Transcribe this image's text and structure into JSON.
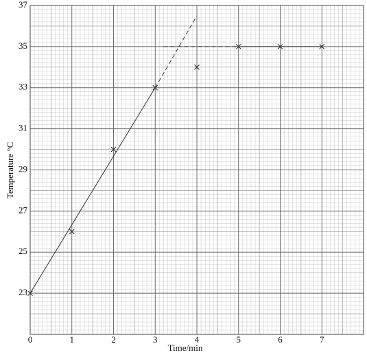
{
  "chart_data": {
    "type": "scatter",
    "x_label": "Time/min",
    "y_label": "Temperature °C",
    "x": [
      0,
      1,
      2,
      3,
      4,
      5,
      6,
      7
    ],
    "values": [
      23,
      26,
      30,
      33,
      34,
      35,
      35,
      35
    ],
    "color": "#333333",
    "xlim": [
      0,
      8
    ],
    "ylim": [
      21,
      37
    ],
    "xticks": [
      0,
      1,
      2,
      3,
      4,
      5,
      6,
      7
    ],
    "yticks": [
      23,
      25,
      27,
      29,
      31,
      33,
      35,
      37
    ],
    "grid": true,
    "lines": [
      {
        "x": [
          0,
          3
        ],
        "values": [
          23,
          33
        ],
        "dashed": false
      },
      {
        "x": [
          3,
          4
        ],
        "values": [
          33,
          36.5
        ],
        "dashed": true
      },
      {
        "x": [
          3.2,
          5
        ],
        "values": [
          35,
          35
        ],
        "dashed": true
      },
      {
        "x": [
          5,
          7
        ],
        "values": [
          35,
          35
        ],
        "dashed": false
      }
    ]
  }
}
